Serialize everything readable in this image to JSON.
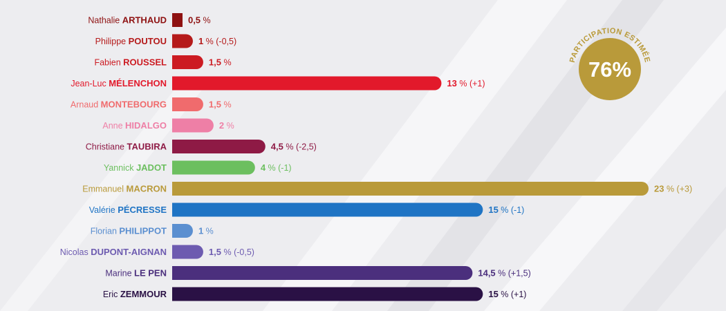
{
  "participation": {
    "label": "PARTICIPATION ESTIMÉE",
    "value": "76%",
    "color": "#b99a3a"
  },
  "chart_data": {
    "type": "bar",
    "orientation": "horizontal",
    "categories": [
      "Nathalie ARTHAUD",
      "Philippe POUTOU",
      "Fabien ROUSSEL",
      "Jean-Luc MÉLENCHON",
      "Arnaud MONTEBOURG",
      "Anne HIDALGO",
      "Christiane TAUBIRA",
      "Yannick JADOT",
      "Emmanuel MACRON",
      "Valérie PÉCRESSE",
      "Florian PHILIPPOT",
      "Nicolas DUPONT-AIGNAN",
      "Marine LE PEN",
      "Eric ZEMMOUR"
    ],
    "values": [
      0.5,
      1,
      1.5,
      13,
      1.5,
      2,
      4.5,
      4,
      23,
      15,
      1,
      1.5,
      14.5,
      15
    ],
    "unit": "%",
    "bars": [
      {
        "first": "Nathalie",
        "last": "ARTHAUD",
        "value": 0.5,
        "value_label": "0,5",
        "change": "",
        "color": "#8e1111"
      },
      {
        "first": "Philippe",
        "last": "POUTOU",
        "value": 1,
        "value_label": "1",
        "change": "(-0,5)",
        "color": "#b51a1a"
      },
      {
        "first": "Fabien",
        "last": "ROUSSEL",
        "value": 1.5,
        "value_label": "1,5",
        "change": "",
        "color": "#cc1b22"
      },
      {
        "first": "Jean-Luc",
        "last": "MÉLENCHON",
        "value": 13,
        "value_label": "13",
        "change": "(+1)",
        "color": "#e2192b"
      },
      {
        "first": "Arnaud",
        "last": "MONTEBOURG",
        "value": 1.5,
        "value_label": "1,5",
        "change": "",
        "color": "#f06b6d"
      },
      {
        "first": "Anne",
        "last": "HIDALGO",
        "value": 2,
        "value_label": "2",
        "change": "",
        "color": "#ee7fa6"
      },
      {
        "first": "Christiane",
        "last": "TAUBIRA",
        "value": 4.5,
        "value_label": "4,5",
        "change": "(-2,5)",
        "color": "#8e1a45"
      },
      {
        "first": "Yannick",
        "last": "JADOT",
        "value": 4,
        "value_label": "4",
        "change": "(-1)",
        "color": "#6cbf5f"
      },
      {
        "first": "Emmanuel",
        "last": "MACRON",
        "value": 23,
        "value_label": "23",
        "change": "(+3)",
        "color": "#b99a3a"
      },
      {
        "first": "Valérie",
        "last": "PÉCRESSE",
        "value": 15,
        "value_label": "15",
        "change": "(-1)",
        "color": "#1f74c4"
      },
      {
        "first": "Florian",
        "last": "PHILIPPOT",
        "value": 1,
        "value_label": "1",
        "change": "",
        "color": "#5b8fd0"
      },
      {
        "first": "Nicolas",
        "last": "DUPONT-AIGNAN",
        "value": 1.5,
        "value_label": "1,5",
        "change": "(-0,5)",
        "color": "#6d5bb0"
      },
      {
        "first": "Marine",
        "last": "LE PEN",
        "value": 14.5,
        "value_label": "14,5",
        "change": "(+1,5)",
        "color": "#4b2f7d"
      },
      {
        "first": "Eric",
        "last": "ZEMMOUR",
        "value": 15,
        "value_label": "15",
        "change": "(+1)",
        "color": "#2a1145"
      }
    ],
    "xlim": [
      0,
      23
    ],
    "grid": false,
    "legend": "none"
  }
}
